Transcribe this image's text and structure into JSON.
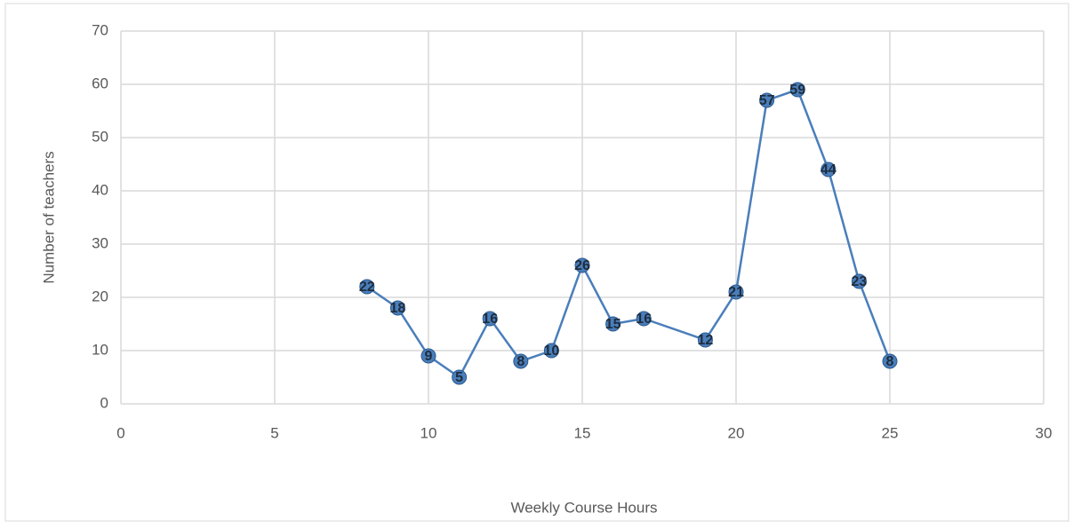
{
  "chart_data": {
    "type": "line",
    "xlabel": "Weekly Course Hours",
    "ylabel": "Number of teachers",
    "x": [
      8,
      9,
      10,
      11,
      12,
      13,
      14,
      15,
      16,
      17,
      19,
      20,
      21,
      22,
      23,
      24,
      25
    ],
    "series": [
      {
        "color": "#4a7ebb",
        "values": [
          22,
          18,
          9,
          5,
          16,
          8,
          10,
          26,
          15,
          16,
          12,
          21,
          57,
          59,
          44,
          23,
          8
        ]
      }
    ],
    "xlim": [
      0,
      30
    ],
    "xticks": [
      0,
      5,
      10,
      15,
      20,
      25,
      30
    ],
    "ylim": [
      0,
      70
    ],
    "yticks": [
      0,
      10,
      20,
      30,
      40,
      50,
      60,
      70
    ],
    "grid": true,
    "data_labels": true
  }
}
